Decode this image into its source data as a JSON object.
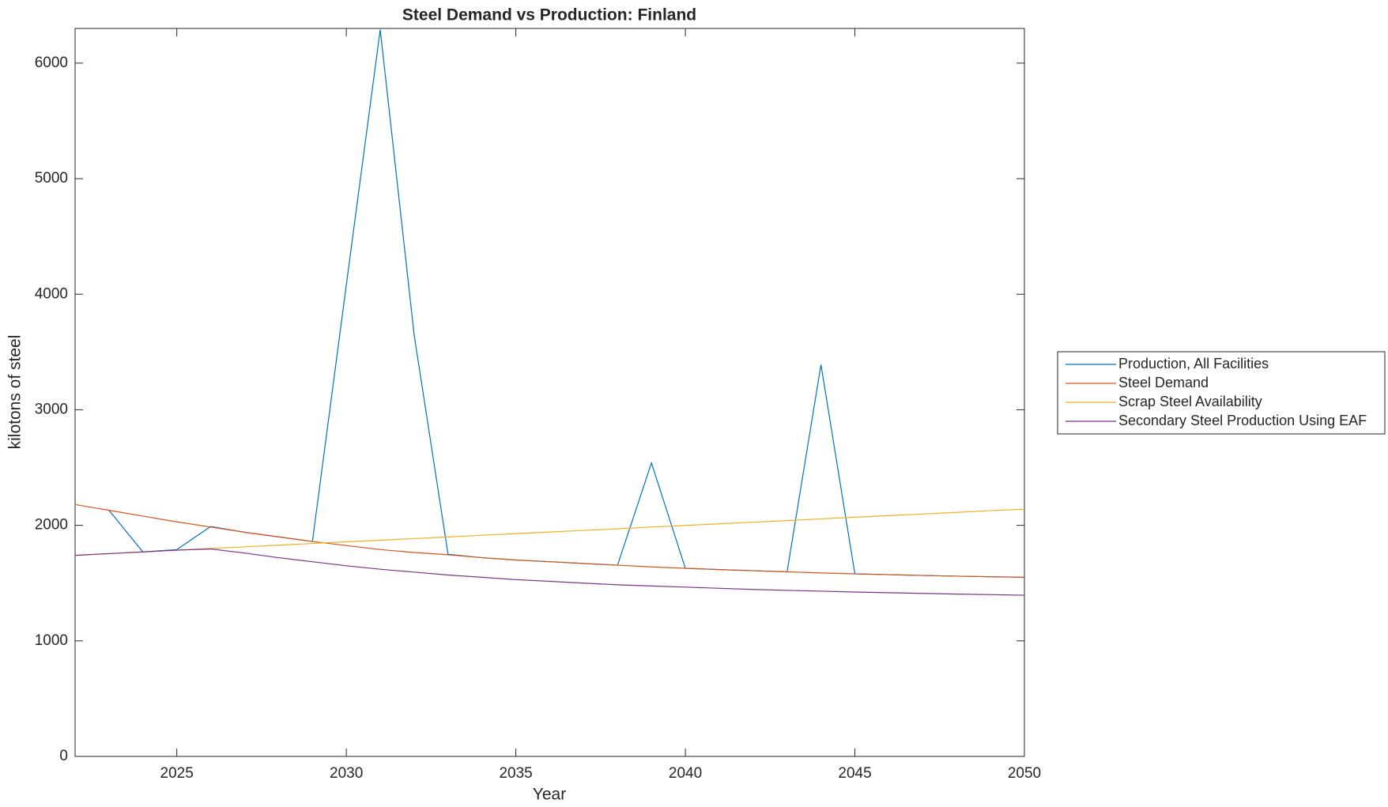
{
  "chart_data": {
    "type": "line",
    "title": "Steel Demand vs Production: Finland",
    "xlabel": "Year",
    "ylabel": "kilotons of steel",
    "x": [
      2022,
      2023,
      2024,
      2025,
      2026,
      2027,
      2028,
      2029,
      2030,
      2031,
      2032,
      2033,
      2034,
      2035,
      2036,
      2037,
      2038,
      2039,
      2040,
      2041,
      2042,
      2043,
      2044,
      2045,
      2046,
      2047,
      2048,
      2049,
      2050
    ],
    "series": [
      {
        "name": "Production, All Facilities",
        "color": "#0072bd",
        "values": [
          null,
          2130,
          1770,
          1790,
          1990,
          1940,
          1900,
          1860,
          4080,
          6290,
          3650,
          1750,
          1720,
          1700,
          1685,
          1670,
          1655,
          2540,
          1628,
          1617,
          1607,
          1597,
          3390,
          1580,
          1573,
          1566,
          1560,
          1555,
          1550
        ]
      },
      {
        "name": "Steel Demand",
        "color": "#d95319",
        "values": [
          2180,
          2130,
          2080,
          2030,
          1985,
          1940,
          1900,
          1860,
          1825,
          1790,
          1765,
          1745,
          1720,
          1700,
          1685,
          1670,
          1655,
          1640,
          1628,
          1617,
          1607,
          1597,
          1588,
          1580,
          1573,
          1566,
          1560,
          1555,
          1550
        ]
      },
      {
        "name": "Scrap Steel Availability",
        "color": "#edb120",
        "values": [
          1740,
          1755,
          1770,
          1785,
          1800,
          1814,
          1828,
          1843,
          1857,
          1871,
          1885,
          1899,
          1914,
          1928,
          1942,
          1956,
          1970,
          1985,
          1999,
          2013,
          2027,
          2041,
          2056,
          2070,
          2084,
          2098,
          2112,
          2127,
          2140
        ]
      },
      {
        "name": "Secondary Steel Production Using EAF",
        "color": "#7e2f8e",
        "values": [
          1740,
          1755,
          1770,
          1785,
          1795,
          1760,
          1720,
          1685,
          1650,
          1620,
          1595,
          1570,
          1550,
          1530,
          1515,
          1500,
          1485,
          1475,
          1465,
          1455,
          1445,
          1437,
          1430,
          1423,
          1417,
          1411,
          1405,
          1400,
          1395
        ]
      }
    ],
    "xlim": [
      2022,
      2050
    ],
    "xticks": [
      2025,
      2030,
      2035,
      2040,
      2045,
      2050
    ],
    "ylim": [
      0,
      6300
    ],
    "yticks": [
      0,
      1000,
      2000,
      3000,
      4000,
      5000,
      6000
    ],
    "grid": false,
    "legend": "outside-right"
  }
}
